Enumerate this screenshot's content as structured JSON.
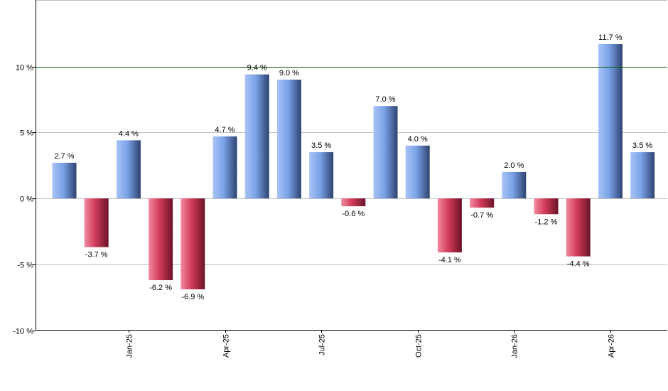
{
  "chart_data": {
    "type": "bar",
    "title": "",
    "xlabel": "",
    "ylabel": "",
    "ylim": [
      -10,
      15
    ],
    "grid": true,
    "reference_line": {
      "value": 10,
      "color": "#006400"
    },
    "positive_color": "#7aa2e8",
    "negative_color": "#d23a5a",
    "values": [
      2.7,
      -3.7,
      4.4,
      -6.2,
      -6.9,
      4.7,
      9.4,
      9.0,
      3.5,
      -0.6,
      7.0,
      4.0,
      -4.1,
      -0.7,
      2.0,
      -1.2,
      -4.4,
      11.7,
      3.5
    ],
    "data_labels": [
      "2.7 %",
      "-3.7 %",
      "4.4 %",
      "-6.2 %",
      "-6.9 %",
      "4.7 %",
      "9.4 %",
      "9.0 %",
      "3.5 %",
      "-0.6 %",
      "7.0 %",
      "4.0 %",
      "-4.1 %",
      "-0.7 %",
      "2.0 %",
      "-1.2 %",
      "-4.4 %",
      "11.7 %",
      "3.5 %"
    ],
    "y_ticks": [
      {
        "value": 10,
        "label": "10 %"
      },
      {
        "value": 5,
        "label": "5 %"
      },
      {
        "value": 0,
        "label": "0 %"
      },
      {
        "value": -5,
        "label": "-5 %"
      },
      {
        "value": -10,
        "label": "-10 %"
      }
    ],
    "x_ticks": [
      {
        "index": 2,
        "label": "Jan-25"
      },
      {
        "index": 5,
        "label": "Apr-25"
      },
      {
        "index": 8,
        "label": "Jul-25"
      },
      {
        "index": 11,
        "label": "Oct-25"
      },
      {
        "index": 14,
        "label": "Jan-26"
      },
      {
        "index": 17,
        "label": "Apr-26"
      }
    ]
  }
}
